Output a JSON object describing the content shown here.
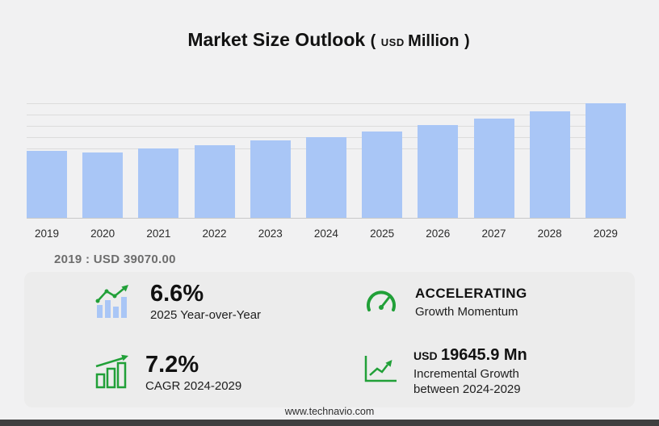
{
  "title": {
    "main": "Market Size Outlook",
    "open_paren": "(",
    "unit_small": "USD",
    "unit_large": "Million",
    "close_paren": ")"
  },
  "chart_data": {
    "type": "bar",
    "title": "Market Size Outlook (USD Million)",
    "categories": [
      "2019",
      "2020",
      "2021",
      "2022",
      "2023",
      "2024",
      "2025",
      "2026",
      "2027",
      "2028",
      "2029"
    ],
    "values": [
      39070,
      38300,
      40400,
      42600,
      45100,
      47300,
      50400,
      54000,
      58100,
      62400,
      66900
    ],
    "xlabel": "",
    "ylabel": "",
    "ylim": [
      0,
      67000
    ],
    "grid": "horizontal-top-region",
    "legend": "none",
    "bar_color": "#a9c6f6",
    "annotation": "2019 : USD 39070.00"
  },
  "stats": {
    "yoy": {
      "value": "6.6%",
      "label": "2025 Year-over-Year"
    },
    "momentum": {
      "value": "ACCELERATING",
      "label": "Growth Momentum"
    },
    "cagr": {
      "value": "7.2%",
      "label": "CAGR 2024-2029"
    },
    "incremental": {
      "prefix": "USD",
      "value": "19645.9 Mn",
      "label_line1": "Incremental Growth",
      "label_line2": "between 2024-2029"
    }
  },
  "footer": {
    "site": "www.technavio.com"
  },
  "colors": {
    "background": "#f1f1f2",
    "panel": "#ececec",
    "bar": "#a9c6f6",
    "accent_green": "#21a038",
    "footer_bar": "#3f3f3f",
    "annotation_gray": "#6d6d6d"
  }
}
